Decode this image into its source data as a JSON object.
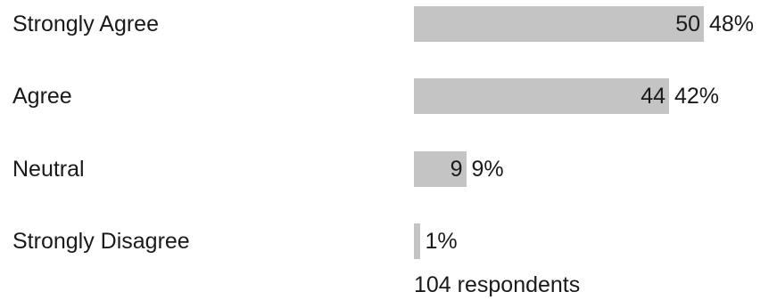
{
  "chart_data": {
    "type": "bar",
    "orientation": "horizontal",
    "categories": [
      "Strongly Agree",
      "Agree",
      "Neutral",
      "Strongly Disagree"
    ],
    "values": [
      50,
      44,
      9,
      1
    ],
    "count_labels": [
      "50",
      "44",
      "9",
      ""
    ],
    "percent_labels": [
      "48%",
      "42%",
      "9%",
      "1%"
    ],
    "bar_color": "#c4c4c4",
    "total_label": "104 respondents"
  }
}
